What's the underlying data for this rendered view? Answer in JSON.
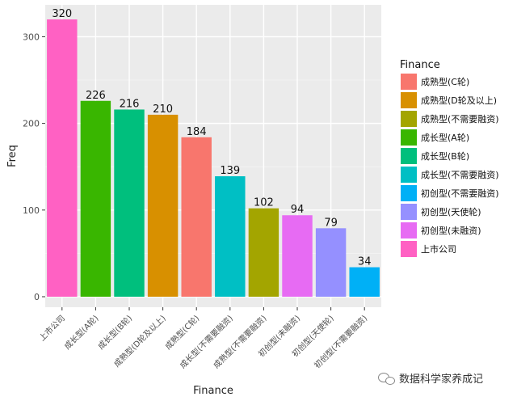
{
  "chart_data": {
    "type": "bar",
    "xlabel": "Finance",
    "ylabel": "Freq",
    "ylim": [
      0,
      340
    ],
    "yticks": [
      0,
      100,
      200,
      300
    ],
    "grid": true,
    "legend_position": "right",
    "legend_title": "Finance",
    "categories": [
      "上市公司",
      "成长型(A轮)",
      "成长型(B轮)",
      "成熟型(D轮及以上)",
      "成熟型(C轮)",
      "成长型(不需要融资)",
      "成熟型(不需要融资)",
      "初创型(未融资)",
      "初创型(天使轮)",
      "初创型(不需要融资)"
    ],
    "values": [
      320,
      226,
      216,
      210,
      184,
      139,
      102,
      94,
      79,
      34
    ],
    "colors": [
      "#FF61C3",
      "#39B600",
      "#00BF7D",
      "#D89000",
      "#F8766D",
      "#00BFC4",
      "#A3A500",
      "#E76BF3",
      "#9590FF",
      "#00B0F6"
    ],
    "legend": [
      {
        "label": "成熟型(C轮)",
        "color": "#F8766D"
      },
      {
        "label": "成熟型(D轮及以上)",
        "color": "#D89000"
      },
      {
        "label": "成熟型(不需要融资)",
        "color": "#A3A500"
      },
      {
        "label": "成长型(A轮)",
        "color": "#39B600"
      },
      {
        "label": "成长型(B轮)",
        "color": "#00BF7D"
      },
      {
        "label": "成长型(不需要融资)",
        "color": "#00BFC4"
      },
      {
        "label": "初创型(不需要融资)",
        "color": "#00B0F6"
      },
      {
        "label": "初创型(天使轮)",
        "color": "#9590FF"
      },
      {
        "label": "初创型(未融资)",
        "color": "#E76BF3"
      },
      {
        "label": "上市公司",
        "color": "#FF61C3"
      }
    ]
  },
  "watermark": {
    "text": "数据科学家养成记",
    "icon": "wechat-icon"
  }
}
